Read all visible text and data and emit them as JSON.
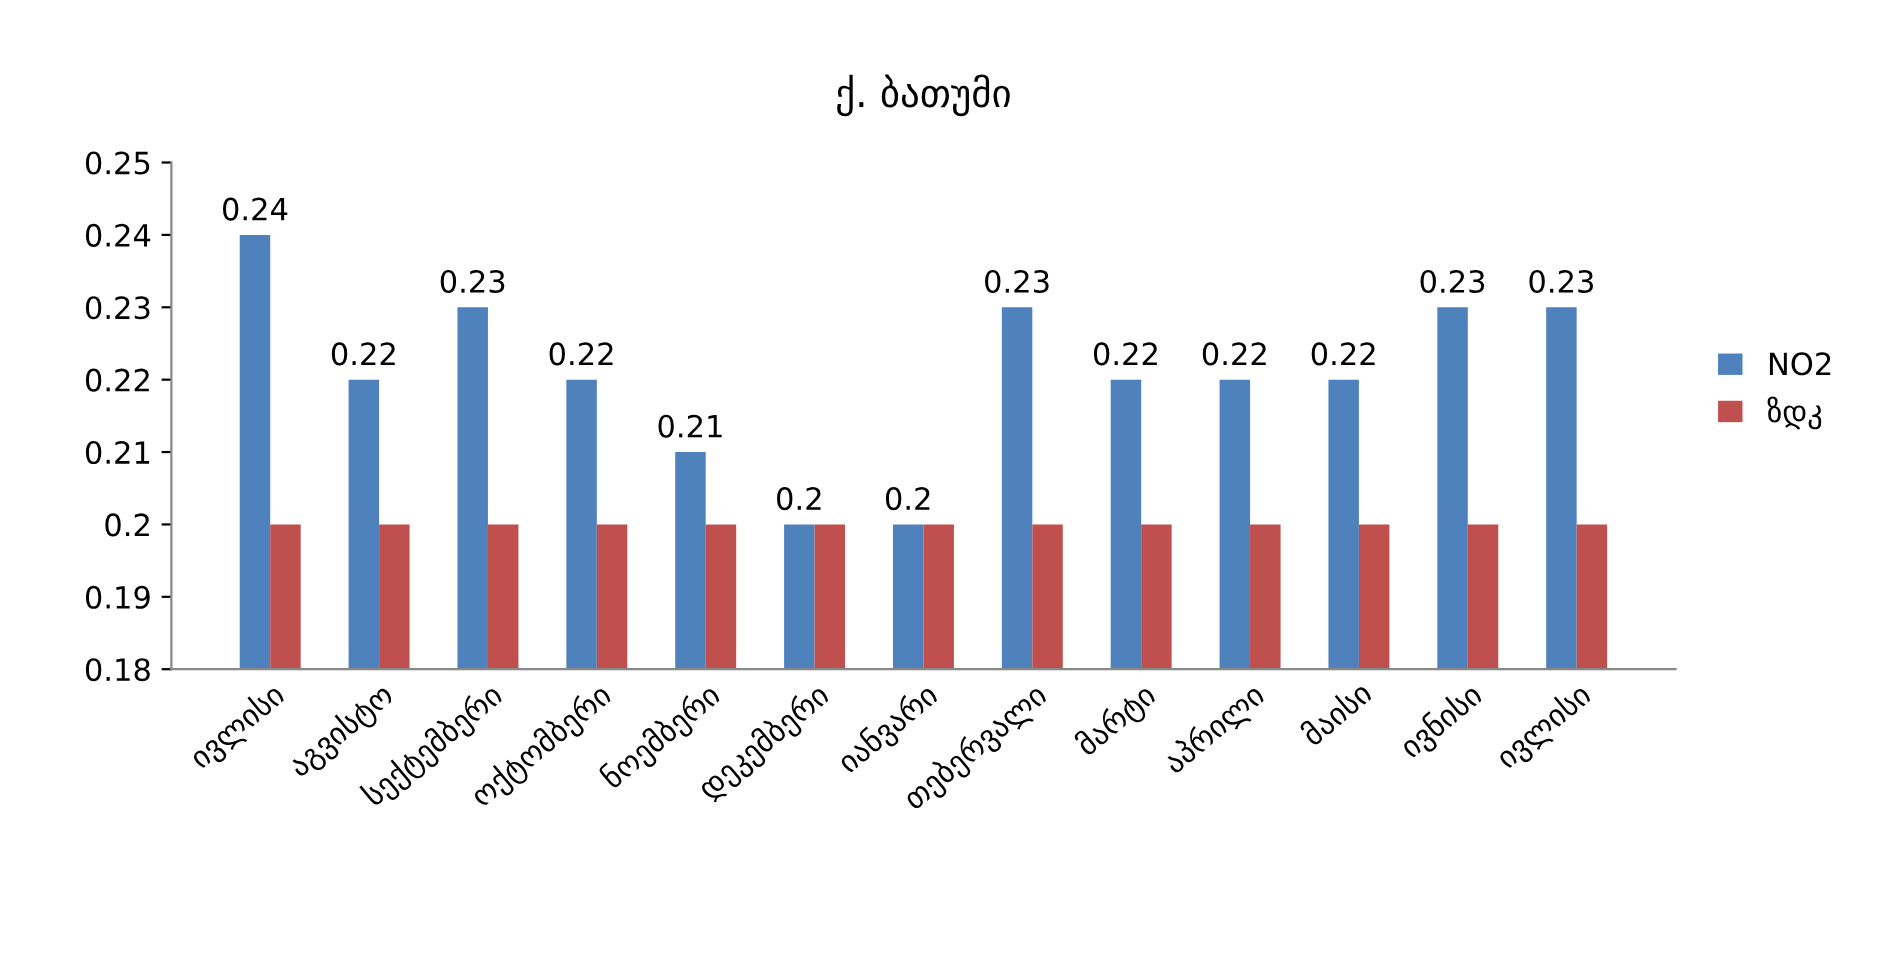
{
  "chart_data": {
    "type": "bar",
    "title": "ქ. ბათუმი",
    "categories": [
      "ივლისი",
      "აგვისტო",
      "სექტემბერი",
      "ოქტომბერი",
      "ნოემბერი",
      "დეკემბერი",
      "იანვარი",
      "თებერვალი",
      "მარტი",
      "აპრილი",
      "მაისი",
      "ივნისი",
      "ივლისი"
    ],
    "series": [
      {
        "name": "NO2",
        "color": "#4f81bd",
        "values": [
          0.24,
          0.22,
          0.23,
          0.22,
          0.21,
          0.2,
          0.2,
          0.23,
          0.22,
          0.22,
          0.22,
          0.23,
          0.23
        ],
        "value_labels": [
          "0.24",
          "0.22",
          "0.23",
          "0.22",
          "0.21",
          "0.2",
          "0.2",
          "0.23",
          "0.22",
          "0.22",
          "0.22",
          "0.23",
          "0.23"
        ]
      },
      {
        "name": "ზდკ",
        "color": "#c0504d",
        "values": [
          0.2,
          0.2,
          0.2,
          0.2,
          0.2,
          0.2,
          0.2,
          0.2,
          0.2,
          0.2,
          0.2,
          0.2,
          0.2
        ]
      }
    ],
    "ylim": [
      0.18,
      0.25
    ],
    "yticks": [
      0.18,
      0.19,
      0.2,
      0.21,
      0.22,
      0.23,
      0.24,
      0.25
    ],
    "legend": "right"
  }
}
